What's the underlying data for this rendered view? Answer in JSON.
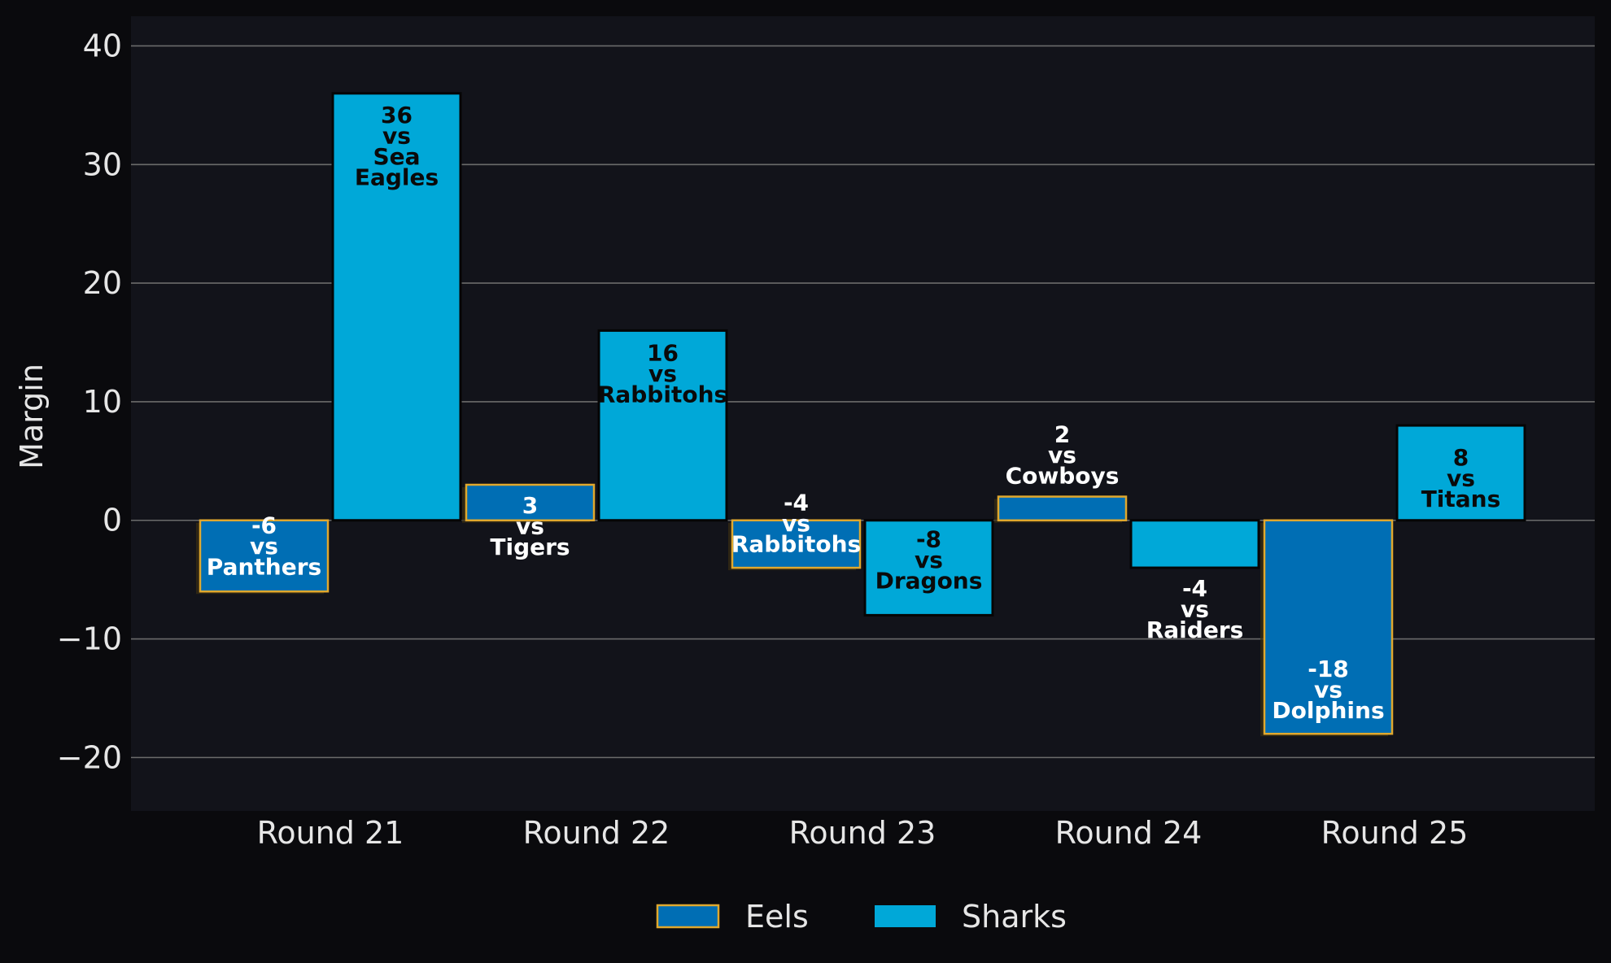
{
  "chart_data": {
    "type": "bar",
    "title": "",
    "xlabel": "",
    "ylabel": "Margin",
    "ylim": [
      -24.5,
      42.5
    ],
    "yticks": [
      -20,
      -10,
      0,
      10,
      20,
      30,
      40
    ],
    "ytick_labels": [
      "−20",
      "−10",
      "0",
      "10",
      "20",
      "30",
      "40"
    ],
    "grid": true,
    "legend_position": "bottom-center",
    "categories": [
      "Round 21",
      "Round 22",
      "Round 23",
      "Round 24",
      "Round 25"
    ],
    "series": [
      {
        "name": "Eels",
        "color": "#006eb4",
        "edge_color": "#e0a82e",
        "values": [
          -6,
          3,
          -4,
          2,
          -18
        ],
        "labels": [
          [
            "-6",
            "vs",
            "Panthers"
          ],
          [
            "3",
            "vs",
            "Tigers"
          ],
          [
            "-4",
            "vs",
            "Rabbitohs"
          ],
          [
            "2",
            "vs",
            "Cowboys"
          ],
          [
            "-18",
            "vs",
            "Dolphins"
          ]
        ]
      },
      {
        "name": "Sharks",
        "color": "#00a8d8",
        "edge_color": "#050505",
        "values": [
          36,
          16,
          -8,
          -4,
          8
        ],
        "labels": [
          [
            "36",
            "vs",
            "Sea",
            "Eagles"
          ],
          [
            "16",
            "vs",
            "Rabbitohs"
          ],
          [
            "-8",
            "vs",
            "Dragons"
          ],
          [
            "-4",
            "vs",
            "Raiders"
          ],
          [
            "8",
            "vs",
            "Titans"
          ]
        ]
      }
    ]
  },
  "colors": {
    "background": "#0a0a0d",
    "plot_background": "#12131a",
    "grid": "#6b6b6b",
    "text": "#e6e6e6"
  }
}
